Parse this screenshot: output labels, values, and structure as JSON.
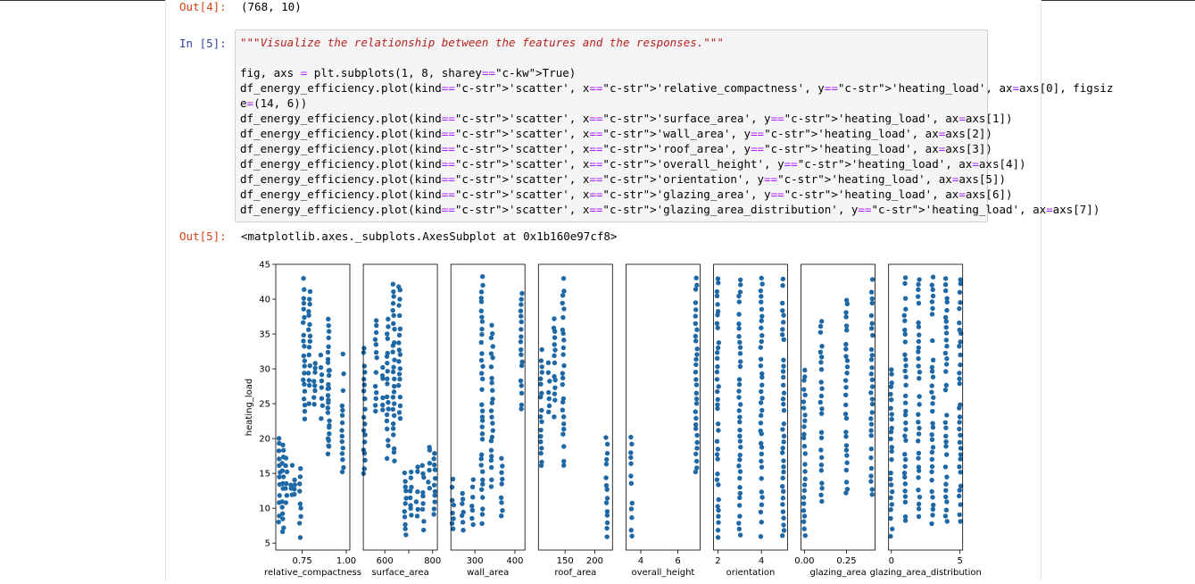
{
  "cells": {
    "out4": {
      "prompt": "Out[4]:",
      "text": "(768, 10)"
    },
    "in5": {
      "prompt": "In [5]:",
      "lines": [
        "\"\"\"Visualize the relationship between the features and the responses.\"\"\"",
        "",
        "fig, axs = plt.subplots(1, 8, sharey=True)",
        "df_energy_efficiency.plot(kind='scatter', x='relative_compactness', y='heating_load', ax=axs[0], figsiz",
        "e=(14, 6))",
        "df_energy_efficiency.plot(kind='scatter', x='surface_area', y='heating_load', ax=axs[1])",
        "df_energy_efficiency.plot(kind='scatter', x='wall_area', y='heating_load', ax=axs[2])",
        "df_energy_efficiency.plot(kind='scatter', x='roof_area', y='heating_load', ax=axs[3])",
        "df_energy_efficiency.plot(kind='scatter', x='overall_height', y='heating_load', ax=axs[4])",
        "df_energy_efficiency.plot(kind='scatter', x='orientation', y='heating_load', ax=axs[5])",
        "df_energy_efficiency.plot(kind='scatter', x='glazing_area', y='heating_load', ax=axs[6])",
        "df_energy_efficiency.plot(kind='scatter', x='glazing_area_distribution', y='heating_load', ax=axs[7])"
      ]
    },
    "out5": {
      "prompt": "Out[5]:",
      "text": "<matplotlib.axes._subplots.AxesSubplot at 0x1b160e97cf8>"
    }
  },
  "colors": {
    "marker": "#1f68a6",
    "prompt_in": "#303f9f",
    "prompt_out": "#d84315"
  },
  "chart_data": {
    "type": "scatter",
    "shared_y": true,
    "ylabel": "heating_load",
    "ylim": [
      4,
      45
    ],
    "yticks": [
      5,
      10,
      15,
      20,
      25,
      30,
      35,
      40,
      45
    ],
    "panels": [
      {
        "xlabel": "relative_compactness",
        "xlim": [
          0.6,
          1.02
        ],
        "xticks": [
          0.75,
          1.0
        ],
        "xticklabels": [
          "0.75",
          "1.00"
        ],
        "clusters": [
          [
            0.62,
            8,
            20
          ],
          [
            0.64,
            6.5,
            19
          ],
          [
            0.66,
            10,
            17
          ],
          [
            0.69,
            11,
            16
          ],
          [
            0.71,
            12,
            15
          ],
          [
            0.74,
            6,
            15.5
          ],
          [
            0.76,
            23,
            43
          ],
          [
            0.79,
            25,
            41
          ],
          [
            0.82,
            25,
            31
          ],
          [
            0.86,
            23,
            32
          ],
          [
            0.9,
            18,
            37
          ],
          [
            0.9,
            19,
            30
          ],
          [
            0.98,
            15,
            33
          ]
        ]
      },
      {
        "xlabel": "surface_area",
        "xlim": [
          510,
          820
        ],
        "xticks": [
          600,
          700,
          800
        ],
        "xticklabels": [
          "600",
          "",
          "800"
        ],
        "clusters": [
          [
            514,
            15,
            33
          ],
          [
            563,
            24,
            37
          ],
          [
            588,
            24,
            31
          ],
          [
            612,
            17,
            37
          ],
          [
            637,
            16,
            43
          ],
          [
            661,
            23,
            42
          ],
          [
            686,
            6,
            15
          ],
          [
            710,
            8,
            15
          ],
          [
            735,
            9,
            16
          ],
          [
            760,
            7,
            17
          ],
          [
            784,
            13,
            19
          ],
          [
            808,
            9,
            18
          ]
        ]
      },
      {
        "xlabel": "wall_area",
        "xlim": [
          240,
          425
        ],
        "xticks": [
          300,
          400
        ],
        "xticklabels": [
          "300",
          "400"
        ],
        "clusters": [
          [
            245,
            6,
            14
          ],
          [
            269,
            7,
            13
          ],
          [
            294,
            7,
            14
          ],
          [
            318,
            8,
            43
          ],
          [
            343,
            13,
            37
          ],
          [
            367,
            8,
            17
          ],
          [
            416,
            24,
            41
          ]
        ]
      },
      {
        "xlabel": "roof_area",
        "xlim": [
          105,
          230
        ],
        "xticks": [
          150,
          200
        ],
        "xticklabels": [
          "150",
          "200"
        ],
        "clusters": [
          [
            110,
            15,
            33
          ],
          [
            123,
            24,
            31
          ],
          [
            132,
            22,
            37
          ],
          [
            147,
            16,
            43
          ],
          [
            220,
            6,
            20
          ]
        ]
      },
      {
        "xlabel": "overall_height",
        "xlim": [
          3.2,
          7.2
        ],
        "xticks": [
          4,
          6
        ],
        "xticklabels": [
          "4",
          "6"
        ],
        "clusters": [
          [
            3.5,
            6,
            20
          ],
          [
            7,
            15,
            43
          ]
        ]
      },
      {
        "xlabel": "orientation",
        "xlim": [
          1.8,
          5.2
        ],
        "xticks": [
          2,
          4
        ],
        "xticklabels": [
          "2",
          "4"
        ],
        "clusters": [
          [
            2,
            6,
            43
          ],
          [
            3,
            6,
            43
          ],
          [
            4,
            6,
            43
          ],
          [
            5,
            6,
            43
          ]
        ]
      },
      {
        "xlabel": "glazing_area",
        "xlim": [
          -0.02,
          0.42
        ],
        "xticks": [
          0.0,
          0.25
        ],
        "xticklabels": [
          "0.00",
          "0.25"
        ],
        "clusters": [
          [
            0,
            6,
            30
          ],
          [
            0.1,
            11,
            37
          ],
          [
            0.25,
            12,
            40
          ],
          [
            0.4,
            12,
            43
          ]
        ]
      },
      {
        "xlabel": "glazing_area_distribution",
        "xlim": [
          -0.2,
          5.2
        ],
        "xticks": [
          0,
          5
        ],
        "xticklabels": [
          "0",
          "5"
        ],
        "clusters": [
          [
            0,
            6,
            30
          ],
          [
            1,
            8,
            43
          ],
          [
            2,
            8,
            43
          ],
          [
            3,
            8,
            43
          ],
          [
            4,
            8,
            43
          ],
          [
            5,
            8,
            43
          ]
        ]
      }
    ]
  }
}
